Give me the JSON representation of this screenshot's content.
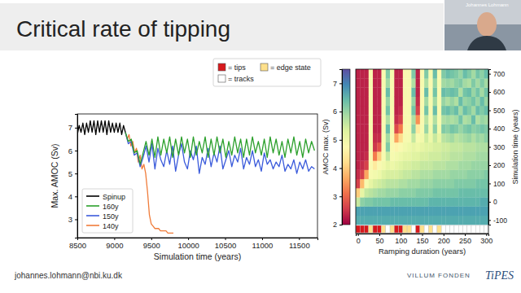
{
  "slide": {
    "title": "Critical rate of tipping",
    "presenter": "Johannes Lohmann",
    "email": "johannes.lohmann@nbi.ku.dk",
    "logos": [
      "VILLUM FONDEN",
      "TiPES"
    ]
  },
  "chart_data": [
    {
      "type": "line",
      "xlabel": "Simulation time (years)",
      "ylabel": "Max. AMOC (Sv)",
      "xlim": [
        8500,
        11750
      ],
      "ylim": [
        2.2,
        7.6
      ],
      "xticks": [
        8500,
        9000,
        9500,
        10000,
        10500,
        11000,
        11500
      ],
      "yticks": [
        3,
        4,
        5,
        6,
        7
      ],
      "legend": "lower left",
      "series": [
        {
          "name": "Spinup",
          "color": "#000000",
          "x": [
            8500,
            8525,
            8550,
            8575,
            8600,
            8625,
            8650,
            8675,
            8700,
            8725,
            8750,
            8775,
            8800,
            8825,
            8850,
            8875,
            8900,
            8925,
            8950,
            8975,
            9000,
            9025,
            9050,
            9075,
            9100,
            9125,
            9150
          ],
          "values": [
            6.7,
            7.1,
            6.8,
            7.2,
            6.7,
            7.2,
            6.8,
            7.3,
            6.8,
            7.3,
            6.7,
            7.3,
            6.8,
            7.3,
            6.8,
            7.3,
            6.7,
            7.3,
            6.8,
            7.2,
            6.8,
            7.2,
            6.8,
            7.2,
            6.7,
            7.1,
            6.8
          ]
        },
        {
          "name": "160y",
          "color": "#2ca02c",
          "x": [
            9150,
            9190,
            9230,
            9270,
            9310,
            9350,
            9390,
            9430,
            9470,
            9510,
            9550,
            9590,
            9630,
            9670,
            9710,
            9750,
            9790,
            9830,
            9870,
            9910,
            9950,
            9990,
            10030,
            10070,
            10110,
            10150,
            10190,
            10230,
            10270,
            10310,
            10350,
            10390,
            10430,
            10470,
            10510,
            10550,
            10590,
            10630,
            10670,
            10710,
            10750,
            10790,
            10830,
            10870,
            10910,
            10950,
            10990,
            11030,
            11070,
            11110,
            11150,
            11190,
            11230,
            11270,
            11310,
            11350,
            11390,
            11430,
            11470,
            11510,
            11550,
            11590,
            11630,
            11670,
            11710
          ],
          "values": [
            6.8,
            6.4,
            6.5,
            5.9,
            6.0,
            5.4,
            5.9,
            6.4,
            5.8,
            6.5,
            5.7,
            6.6,
            5.8,
            6.5,
            5.9,
            6.6,
            5.7,
            6.5,
            5.8,
            6.6,
            5.9,
            6.5,
            5.7,
            6.6,
            5.8,
            6.4,
            5.9,
            6.6,
            5.7,
            6.5,
            5.8,
            6.6,
            5.9,
            6.5,
            5.7,
            6.4,
            5.8,
            6.6,
            5.9,
            6.5,
            5.7,
            6.5,
            5.8,
            6.6,
            5.9,
            6.4,
            5.8,
            6.5,
            5.7,
            6.6,
            5.9,
            6.5,
            5.8,
            6.4,
            5.7,
            6.5,
            5.9,
            6.6,
            5.8,
            6.4,
            5.7,
            6.5,
            5.9,
            6.4,
            6.0
          ]
        },
        {
          "name": "150y",
          "color": "#3b5bdb",
          "x": [
            9150,
            9190,
            9230,
            9270,
            9310,
            9350,
            9390,
            9430,
            9470,
            9510,
            9550,
            9590,
            9630,
            9670,
            9710,
            9750,
            9790,
            9830,
            9870,
            9910,
            9950,
            9990,
            10030,
            10070,
            10110,
            10150,
            10190,
            10230,
            10270,
            10310,
            10350,
            10390,
            10430,
            10470,
            10510,
            10550,
            10590,
            10630,
            10670,
            10710,
            10750,
            10790,
            10830,
            10870,
            10910,
            10950,
            10990,
            11030,
            11070,
            11110,
            11150,
            11190,
            11230,
            11270,
            11310,
            11350,
            11390,
            11430,
            11470,
            11510,
            11550,
            11590,
            11630,
            11670,
            11710
          ],
          "values": [
            6.8,
            6.3,
            6.4,
            5.8,
            5.9,
            5.3,
            5.7,
            6.2,
            5.5,
            6.3,
            5.2,
            6.1,
            5.6,
            5.3,
            6.0,
            5.4,
            6.2,
            5.1,
            5.8,
            6.3,
            5.5,
            5.2,
            6.0,
            5.6,
            6.2,
            5.0,
            5.7,
            5.4,
            6.1,
            5.3,
            5.9,
            5.5,
            6.2,
            5.2,
            5.6,
            6.0,
            5.3,
            5.8,
            5.5,
            6.1,
            5.2,
            5.7,
            5.4,
            6.0,
            5.3,
            5.6,
            5.1,
            5.9,
            5.4,
            5.6,
            5.2,
            5.5,
            5.3,
            5.8,
            5.1,
            5.4,
            5.2,
            5.6,
            5.0,
            5.5,
            5.2,
            5.6,
            5.1,
            5.3,
            5.2
          ]
        },
        {
          "name": "140y",
          "color": "#f07c3a",
          "x": [
            9150,
            9175,
            9200,
            9225,
            9250,
            9275,
            9300,
            9325,
            9350,
            9375,
            9400,
            9425,
            9450,
            9475,
            9500,
            9525,
            9550,
            9575,
            9600,
            9625,
            9650,
            9675,
            9700,
            9725,
            9750,
            9775,
            9800
          ],
          "values": [
            6.8,
            6.5,
            6.7,
            6.2,
            6.4,
            5.9,
            6.1,
            5.5,
            5.8,
            5.2,
            5.4,
            5.0,
            4.2,
            3.2,
            2.8,
            2.7,
            2.6,
            2.6,
            2.6,
            2.5,
            2.5,
            2.5,
            2.5,
            2.4,
            2.4,
            2.4,
            2.4
          ]
        }
      ]
    },
    {
      "type": "heatmap",
      "xlabel": "Ramping duration (years)",
      "ylabel": "Simulation time (years)",
      "x": [
        0,
        10,
        20,
        30,
        40,
        50,
        60,
        70,
        80,
        90,
        100,
        110,
        120,
        130,
        140,
        150,
        160,
        170,
        180,
        190,
        200,
        210,
        220,
        230,
        240,
        250,
        260,
        270,
        280,
        290,
        300
      ],
      "y": [
        -100,
        -50,
        0,
        50,
        100,
        150,
        200,
        250,
        300,
        350,
        400,
        450,
        500,
        550,
        600,
        650,
        700
      ],
      "xlim": [
        -5,
        305
      ],
      "ylim": [
        -125,
        725
      ],
      "xticks": [
        0,
        50,
        100,
        150,
        200,
        250,
        300
      ],
      "yticks": [
        -100,
        0,
        100,
        200,
        300,
        400,
        500,
        600,
        700
      ],
      "colorbar": {
        "label": "AMOC max. (Sv)",
        "lim": [
          2,
          7.5
        ],
        "ticks": [
          2,
          3,
          4,
          5,
          6,
          7
        ]
      },
      "z": [
        [
          6.6,
          6.7,
          5.6,
          4.0,
          2.6,
          2.4,
          2.3,
          2.3,
          2.3,
          2.3,
          2.3,
          2.3,
          2.3,
          2.3,
          2.3,
          2.3,
          2.3
        ],
        [
          6.6,
          6.7,
          6.1,
          5.2,
          3.8,
          2.6,
          2.4,
          2.3,
          2.3,
          2.3,
          2.3,
          2.3,
          2.3,
          2.3,
          2.3,
          2.3,
          2.3
        ],
        [
          6.6,
          6.7,
          6.2,
          5.6,
          4.9,
          3.6,
          2.6,
          2.4,
          2.3,
          2.3,
          2.3,
          2.3,
          2.3,
          2.3,
          2.3,
          2.3,
          2.3
        ],
        [
          6.6,
          6.7,
          6.2,
          5.7,
          5.2,
          4.9,
          4.8,
          4.8,
          4.9,
          4.8,
          4.8,
          4.9,
          4.8,
          4.8,
          4.8,
          4.9,
          4.8
        ],
        [
          6.6,
          6.7,
          6.3,
          5.8,
          5.4,
          5.0,
          4.4,
          3.2,
          2.5,
          2.4,
          2.3,
          2.3,
          2.3,
          2.3,
          2.3,
          2.3,
          2.3
        ],
        [
          6.6,
          6.7,
          6.3,
          5.9,
          5.5,
          5.1,
          4.8,
          4.0,
          2.8,
          2.4,
          2.3,
          2.3,
          2.3,
          2.3,
          2.3,
          2.3,
          2.3
        ],
        [
          6.6,
          6.7,
          6.3,
          5.9,
          5.6,
          5.3,
          5.0,
          4.9,
          4.8,
          4.9,
          4.8,
          4.8,
          4.9,
          4.8,
          4.8,
          4.9,
          4.8
        ],
        [
          6.6,
          6.7,
          6.3,
          6.0,
          5.7,
          5.4,
          5.2,
          5.6,
          6.2,
          5.9,
          6.4,
          5.8,
          6.3,
          6.0,
          6.4,
          5.9,
          6.2
        ],
        [
          6.6,
          6.7,
          6.4,
          6.0,
          5.7,
          5.4,
          5.1,
          4.9,
          4.8,
          4.8,
          4.9,
          4.8,
          4.8,
          4.9,
          4.8,
          4.8,
          4.9
        ],
        [
          6.6,
          6.7,
          6.4,
          6.0,
          5.7,
          5.4,
          5.2,
          5.0,
          4.6,
          3.6,
          2.7,
          2.4,
          2.3,
          2.3,
          2.3,
          2.3,
          2.3
        ],
        [
          6.6,
          6.7,
          6.4,
          6.1,
          5.8,
          5.5,
          5.3,
          5.1,
          4.8,
          4.2,
          3.2,
          2.6,
          2.4,
          2.3,
          2.3,
          2.3,
          2.3
        ],
        [
          6.6,
          6.7,
          6.4,
          6.1,
          5.8,
          5.6,
          5.4,
          5.2,
          5.0,
          4.9,
          4.8,
          4.9,
          4.8,
          4.8,
          4.9,
          4.8,
          4.8
        ],
        [
          6.6,
          6.7,
          6.4,
          6.1,
          5.9,
          5.6,
          5.4,
          5.2,
          5.1,
          4.9,
          4.8,
          4.8,
          4.9,
          4.8,
          4.8,
          4.9,
          4.8
        ],
        [
          6.6,
          6.7,
          6.4,
          6.1,
          5.9,
          5.7,
          5.5,
          5.3,
          5.2,
          5.6,
          6.1,
          5.8,
          6.3,
          6.0,
          6.4,
          5.8,
          6.2
        ],
        [
          6.6,
          6.7,
          6.4,
          6.2,
          5.9,
          5.7,
          5.5,
          5.3,
          5.1,
          4.9,
          4.4,
          3.4,
          2.6,
          2.4,
          2.3,
          2.3,
          2.3
        ],
        [
          6.6,
          6.7,
          6.4,
          6.2,
          6.0,
          5.8,
          5.6,
          5.4,
          5.2,
          5.0,
          4.9,
          4.8,
          4.9,
          4.8,
          4.8,
          4.9,
          4.8
        ],
        [
          6.6,
          6.7,
          6.4,
          6.2,
          6.0,
          5.8,
          5.6,
          5.4,
          5.3,
          5.5,
          6.0,
          5.7,
          6.3,
          5.9,
          6.4,
          5.8,
          6.2
        ],
        [
          6.6,
          6.7,
          6.5,
          6.2,
          6.0,
          5.8,
          5.6,
          5.5,
          5.3,
          5.1,
          5.0,
          4.9,
          4.8,
          4.9,
          4.8,
          4.8,
          4.9
        ],
        [
          6.6,
          6.7,
          6.5,
          6.3,
          6.1,
          5.9,
          5.7,
          5.5,
          5.4,
          5.6,
          6.1,
          5.8,
          6.4,
          5.9,
          6.3,
          6.0,
          6.4
        ],
        [
          6.6,
          6.7,
          6.5,
          6.3,
          6.1,
          5.9,
          5.7,
          5.5,
          5.4,
          5.2,
          5.0,
          4.9,
          4.8,
          4.9,
          4.8,
          4.9,
          4.8
        ],
        [
          6.6,
          6.7,
          6.5,
          6.3,
          6.1,
          5.9,
          5.7,
          5.6,
          5.5,
          5.7,
          6.2,
          5.8,
          6.3,
          6.0,
          6.4,
          5.9,
          6.2
        ],
        [
          6.6,
          6.7,
          6.5,
          6.3,
          6.1,
          5.9,
          5.8,
          5.6,
          5.5,
          5.8,
          6.1,
          5.9,
          6.4,
          5.8,
          6.3,
          6.0,
          6.4
        ],
        [
          6.6,
          6.7,
          6.5,
          6.3,
          6.1,
          6.0,
          5.8,
          5.7,
          5.6,
          5.9,
          6.3,
          5.8,
          6.2,
          6.0,
          6.4,
          5.9,
          6.3
        ],
        [
          6.6,
          6.7,
          6.5,
          6.3,
          6.2,
          6.0,
          5.8,
          5.7,
          5.6,
          5.7,
          6.2,
          5.9,
          6.4,
          5.8,
          6.3,
          6.1,
          6.2
        ],
        [
          6.6,
          6.7,
          6.5,
          6.4,
          6.2,
          6.0,
          5.9,
          5.7,
          5.6,
          5.8,
          6.0,
          6.3,
          5.9,
          6.4,
          5.8,
          6.2,
          6.0
        ],
        [
          6.6,
          6.7,
          6.5,
          6.4,
          6.2,
          6.0,
          5.9,
          5.8,
          5.7,
          5.9,
          6.2,
          5.8,
          6.4,
          6.0,
          6.3,
          5.9,
          6.4
        ],
        [
          6.6,
          6.7,
          6.5,
          6.4,
          6.2,
          6.1,
          5.9,
          5.8,
          5.7,
          6.0,
          6.3,
          5.9,
          6.2,
          6.1,
          6.4,
          5.8,
          6.2
        ],
        [
          6.6,
          6.7,
          6.5,
          6.4,
          6.2,
          6.1,
          6.0,
          5.8,
          5.7,
          5.8,
          6.1,
          6.4,
          5.9,
          6.3,
          6.0,
          6.2,
          5.9
        ],
        [
          6.6,
          6.7,
          6.5,
          6.4,
          6.3,
          6.1,
          6.0,
          5.9,
          5.8,
          6.0,
          6.2,
          5.8,
          6.4,
          6.0,
          6.3,
          5.9,
          6.3
        ],
        [
          6.6,
          6.7,
          6.6,
          6.4,
          6.3,
          6.1,
          6.0,
          5.9,
          5.8,
          5.9,
          6.3,
          6.0,
          6.2,
          6.4,
          5.9,
          6.2,
          6.1
        ],
        [
          6.6,
          6.7,
          6.6,
          6.4,
          6.3,
          6.2,
          6.0,
          5.9,
          5.8,
          6.1,
          6.2,
          5.9,
          6.4,
          6.0,
          6.3,
          5.9,
          6.4
        ]
      ],
      "status": [
        0,
        0,
        0,
        1,
        0,
        0,
        1,
        2,
        1,
        0,
        0,
        1,
        1,
        2,
        0,
        1,
        2,
        1,
        2,
        1,
        2,
        2,
        2,
        2,
        2,
        2,
        2,
        2,
        2,
        2,
        2
      ],
      "status_labels": [
        "= tips",
        "= edge state",
        "= tracks"
      ],
      "status_colors": [
        "#d7191c",
        "#fee08b",
        "#ffffff"
      ]
    }
  ]
}
